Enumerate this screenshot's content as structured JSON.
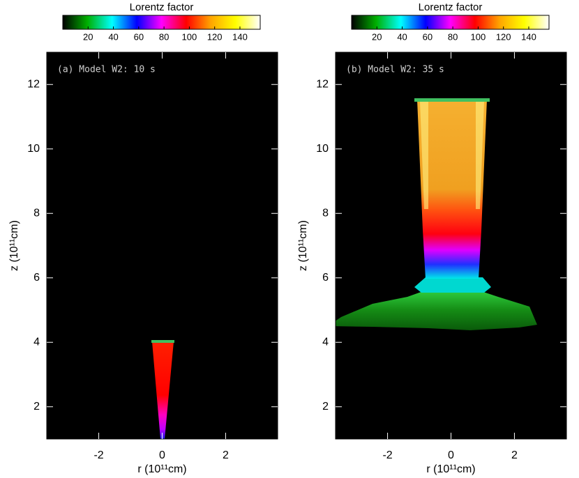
{
  "chart_data": [
    {
      "type": "image",
      "title": "Lorentz factor",
      "annotation": "(a) Model W2: 10 s",
      "xlabel": "r (10¹¹cm)",
      "ylabel": "z (10¹¹cm)",
      "xlim": [
        -3.64,
        3.64
      ],
      "ylim": [
        1,
        13
      ],
      "xticks": [
        -2,
        0,
        2
      ],
      "yticks": [
        2,
        4,
        6,
        8,
        10,
        12
      ],
      "clim": [
        0,
        156
      ],
      "cticks": [
        20,
        40,
        60,
        80,
        100,
        120,
        140
      ],
      "colormap": [
        "#000000",
        "#00b000",
        "#00ffff",
        "#0000ff",
        "#ff00ff",
        "#ff0000",
        "#ffa500",
        "#ffff00",
        "#ffffff"
      ]
    },
    {
      "type": "image",
      "title": "Lorentz factor",
      "annotation": "(b) Model W2: 35 s",
      "xlabel": "r (10¹¹cm)",
      "ylabel": "z (10¹¹cm)",
      "xlim": [
        -3.64,
        3.64
      ],
      "ylim": [
        1,
        13
      ],
      "xticks": [
        -2,
        0,
        2
      ],
      "yticks": [
        2,
        4,
        6,
        8,
        10,
        12
      ],
      "clim": [
        0,
        156
      ],
      "cticks": [
        20,
        40,
        60,
        80,
        100,
        120,
        140
      ],
      "colormap": [
        "#000000",
        "#00b000",
        "#00ffff",
        "#0000ff",
        "#ff00ff",
        "#ff0000",
        "#ffa500",
        "#ffff00",
        "#ffffff"
      ]
    }
  ]
}
